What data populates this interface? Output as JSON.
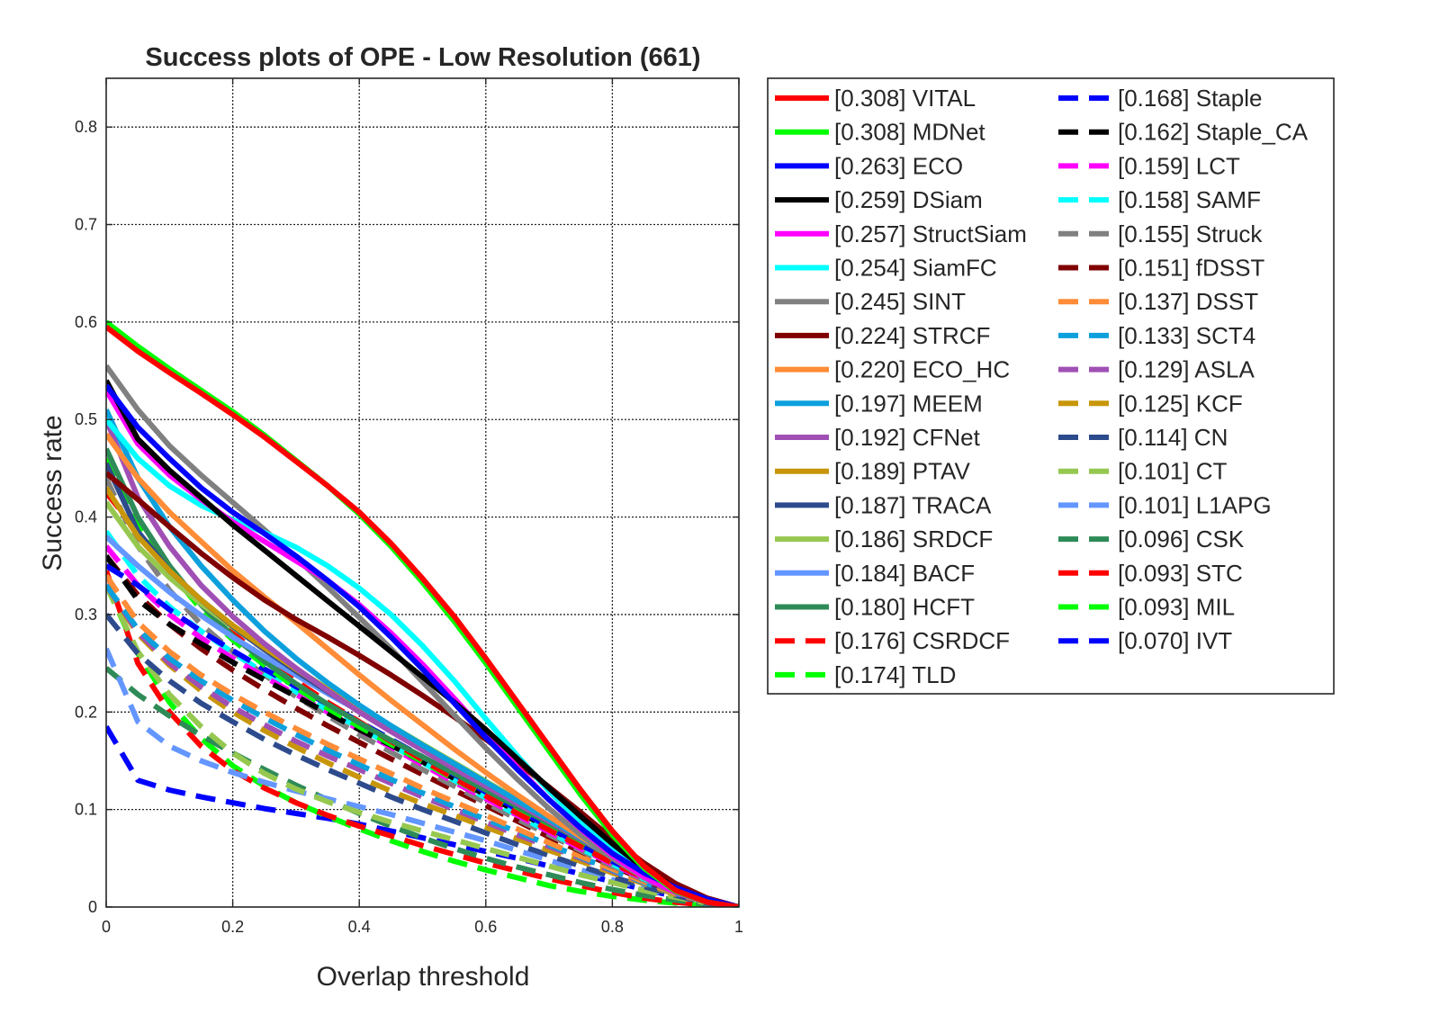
{
  "chart_data": {
    "type": "line",
    "title": "Success plots of OPE - Low Resolution (661)",
    "xlabel": "Overlap threshold",
    "ylabel": "Success rate",
    "xlim": [
      0,
      1
    ],
    "ylim": [
      0,
      0.85
    ],
    "xticks": [
      0,
      0.2,
      0.4,
      0.6,
      0.8,
      1
    ],
    "xtick_labels": [
      "0",
      "0.2",
      "0.4",
      "0.6",
      "0.8",
      "1"
    ],
    "yticks": [
      0,
      0.1,
      0.2,
      0.3,
      0.4,
      0.5,
      0.6,
      0.7,
      0.8
    ],
    "ytick_labels": [
      "0",
      "0.1",
      "0.2",
      "0.3",
      "0.4",
      "0.5",
      "0.6",
      "0.7",
      "0.8"
    ],
    "grid": true,
    "legend_position": "outside-right",
    "x": [
      0,
      0.05,
      0.1,
      0.15,
      0.2,
      0.25,
      0.3,
      0.35,
      0.4,
      0.45,
      0.5,
      0.55,
      0.6,
      0.65,
      0.7,
      0.75,
      0.8,
      0.85,
      0.9,
      0.95,
      1
    ],
    "series": [
      {
        "name": "[0.308] VITAL",
        "color": "#ff0000",
        "style": "solid",
        "values": [
          0.595,
          0.57,
          0.548,
          0.527,
          0.505,
          0.482,
          0.457,
          0.432,
          0.405,
          0.373,
          0.337,
          0.298,
          0.255,
          0.21,
          0.165,
          0.12,
          0.078,
          0.042,
          0.017,
          0.005,
          0.0
        ]
      },
      {
        "name": "[0.308] MDNet",
        "color": "#00ff00",
        "style": "solid",
        "values": [
          0.6,
          0.575,
          0.552,
          0.53,
          0.508,
          0.484,
          0.458,
          0.432,
          0.403,
          0.37,
          0.333,
          0.293,
          0.25,
          0.205,
          0.16,
          0.115,
          0.074,
          0.04,
          0.016,
          0.005,
          0.0
        ]
      },
      {
        "name": "[0.263] ECO",
        "color": "#0000ff",
        "style": "solid",
        "values": [
          0.535,
          0.492,
          0.46,
          0.43,
          0.405,
          0.383,
          0.36,
          0.335,
          0.308,
          0.277,
          0.244,
          0.209,
          0.174,
          0.141,
          0.11,
          0.081,
          0.055,
          0.035,
          0.02,
          0.008,
          0.0
        ]
      },
      {
        "name": "[0.259] DSiam",
        "color": "#000000",
        "style": "solid",
        "values": [
          0.54,
          0.48,
          0.448,
          0.42,
          0.392,
          0.366,
          0.34,
          0.314,
          0.288,
          0.262,
          0.236,
          0.21,
          0.182,
          0.152,
          0.122,
          0.093,
          0.065,
          0.04,
          0.019,
          0.006,
          0.0
        ]
      },
      {
        "name": "[0.257] StructSiam",
        "color": "#ff00ff",
        "style": "solid",
        "values": [
          0.53,
          0.475,
          0.443,
          0.418,
          0.395,
          0.375,
          0.355,
          0.335,
          0.31,
          0.281,
          0.249,
          0.214,
          0.178,
          0.143,
          0.11,
          0.08,
          0.053,
          0.031,
          0.015,
          0.005,
          0.0
        ]
      },
      {
        "name": "[0.254] SiamFC",
        "color": "#00ffff",
        "style": "solid",
        "values": [
          0.5,
          0.46,
          0.432,
          0.412,
          0.397,
          0.384,
          0.369,
          0.35,
          0.327,
          0.3,
          0.268,
          0.232,
          0.193,
          0.155,
          0.119,
          0.087,
          0.059,
          0.035,
          0.017,
          0.006,
          0.0
        ]
      },
      {
        "name": "[0.245] SINT",
        "color": "#808080",
        "style": "solid",
        "values": [
          0.555,
          0.51,
          0.473,
          0.443,
          0.415,
          0.387,
          0.358,
          0.328,
          0.297,
          0.265,
          0.231,
          0.197,
          0.163,
          0.131,
          0.101,
          0.074,
          0.05,
          0.03,
          0.015,
          0.005,
          0.0
        ]
      },
      {
        "name": "[0.224] STRCF",
        "color": "#800000",
        "style": "solid",
        "values": [
          0.445,
          0.418,
          0.39,
          0.363,
          0.338,
          0.315,
          0.295,
          0.277,
          0.258,
          0.238,
          0.217,
          0.195,
          0.172,
          0.148,
          0.123,
          0.097,
          0.07,
          0.045,
          0.024,
          0.009,
          0.0
        ]
      },
      {
        "name": "[0.220] ECO_HC",
        "color": "#ff8c37",
        "style": "solid",
        "values": [
          0.485,
          0.44,
          0.405,
          0.375,
          0.345,
          0.318,
          0.292,
          0.265,
          0.238,
          0.212,
          0.187,
          0.162,
          0.138,
          0.115,
          0.093,
          0.072,
          0.052,
          0.034,
          0.018,
          0.006,
          0.0
        ]
      },
      {
        "name": "[0.197] MEEM",
        "color": "#0ca0dc",
        "style": "solid",
        "values": [
          0.51,
          0.44,
          0.39,
          0.35,
          0.315,
          0.283,
          0.255,
          0.23,
          0.207,
          0.186,
          0.166,
          0.147,
          0.128,
          0.109,
          0.09,
          0.071,
          0.052,
          0.034,
          0.018,
          0.006,
          0.0
        ]
      },
      {
        "name": "[0.192] CFNet",
        "color": "#a050b4",
        "style": "solid",
        "values": [
          0.5,
          0.42,
          0.37,
          0.33,
          0.298,
          0.27,
          0.245,
          0.222,
          0.2,
          0.18,
          0.161,
          0.142,
          0.124,
          0.106,
          0.088,
          0.07,
          0.052,
          0.035,
          0.019,
          0.007,
          0.0
        ]
      },
      {
        "name": "[0.189] PTAV",
        "color": "#c8960a",
        "style": "solid",
        "values": [
          0.43,
          0.38,
          0.345,
          0.315,
          0.289,
          0.266,
          0.244,
          0.223,
          0.203,
          0.184,
          0.165,
          0.146,
          0.127,
          0.108,
          0.089,
          0.07,
          0.051,
          0.034,
          0.018,
          0.006,
          0.0
        ]
      },
      {
        "name": "[0.187] TRACA",
        "color": "#2d4b8c",
        "style": "solid",
        "values": [
          0.455,
          0.385,
          0.345,
          0.315,
          0.288,
          0.264,
          0.242,
          0.221,
          0.201,
          0.182,
          0.163,
          0.145,
          0.127,
          0.109,
          0.09,
          0.071,
          0.052,
          0.034,
          0.018,
          0.006,
          0.0
        ]
      },
      {
        "name": "[0.186] SRDCF",
        "color": "#96c850",
        "style": "solid",
        "values": [
          0.415,
          0.37,
          0.338,
          0.311,
          0.287,
          0.265,
          0.244,
          0.224,
          0.205,
          0.186,
          0.167,
          0.148,
          0.129,
          0.11,
          0.091,
          0.072,
          0.053,
          0.035,
          0.019,
          0.007,
          0.0
        ]
      },
      {
        "name": "[0.184] BACF",
        "color": "#6496ff",
        "style": "solid",
        "values": [
          0.38,
          0.35,
          0.323,
          0.299,
          0.277,
          0.257,
          0.238,
          0.219,
          0.201,
          0.183,
          0.165,
          0.147,
          0.128,
          0.109,
          0.09,
          0.071,
          0.052,
          0.034,
          0.018,
          0.006,
          0.0
        ]
      },
      {
        "name": "[0.180] HCFT",
        "color": "#2e8b57",
        "style": "solid",
        "values": [
          0.47,
          0.4,
          0.35,
          0.31,
          0.278,
          0.252,
          0.229,
          0.208,
          0.189,
          0.171,
          0.154,
          0.137,
          0.12,
          0.103,
          0.086,
          0.069,
          0.051,
          0.034,
          0.018,
          0.006,
          0.0
        ]
      },
      {
        "name": "[0.176] CSRDCF",
        "color": "#ff0000",
        "style": "dashed",
        "values": [
          0.425,
          0.385,
          0.345,
          0.31,
          0.281,
          0.255,
          0.232,
          0.21,
          0.19,
          0.17,
          0.151,
          0.132,
          0.114,
          0.096,
          0.079,
          0.062,
          0.045,
          0.03,
          0.016,
          0.006,
          0.0
        ]
      },
      {
        "name": "[0.174] TLD",
        "color": "#00ff00",
        "style": "dashed",
        "values": [
          0.46,
          0.395,
          0.345,
          0.305,
          0.274,
          0.248,
          0.225,
          0.204,
          0.185,
          0.167,
          0.149,
          0.131,
          0.114,
          0.097,
          0.08,
          0.063,
          0.046,
          0.031,
          0.017,
          0.006,
          0.0
        ]
      },
      {
        "name": "[0.168] Staple",
        "color": "#0000ff",
        "style": "dashed",
        "values": [
          0.35,
          0.33,
          0.305,
          0.283,
          0.263,
          0.244,
          0.226,
          0.208,
          0.19,
          0.172,
          0.154,
          0.136,
          0.118,
          0.1,
          0.082,
          0.064,
          0.047,
          0.031,
          0.017,
          0.006,
          0.0
        ]
      },
      {
        "name": "[0.162] Staple_CA",
        "color": "#000000",
        "style": "dashed",
        "values": [
          0.36,
          0.315,
          0.29,
          0.27,
          0.251,
          0.233,
          0.216,
          0.199,
          0.182,
          0.166,
          0.149,
          0.132,
          0.115,
          0.098,
          0.081,
          0.064,
          0.047,
          0.031,
          0.017,
          0.006,
          0.0
        ]
      },
      {
        "name": "[0.159] LCT",
        "color": "#ff00ff",
        "style": "dashed",
        "values": [
          0.37,
          0.33,
          0.3,
          0.276,
          0.255,
          0.236,
          0.218,
          0.2,
          0.182,
          0.164,
          0.146,
          0.128,
          0.111,
          0.094,
          0.077,
          0.06,
          0.044,
          0.029,
          0.016,
          0.006,
          0.0
        ]
      },
      {
        "name": "[0.158] SAMF",
        "color": "#00ffff",
        "style": "dashed",
        "values": [
          0.385,
          0.34,
          0.308,
          0.283,
          0.261,
          0.24,
          0.221,
          0.202,
          0.184,
          0.166,
          0.148,
          0.13,
          0.112,
          0.094,
          0.077,
          0.06,
          0.044,
          0.029,
          0.016,
          0.006,
          0.0
        ]
      },
      {
        "name": "[0.155] Struck",
        "color": "#808080",
        "style": "dashed",
        "values": [
          0.44,
          0.37,
          0.325,
          0.29,
          0.262,
          0.238,
          0.216,
          0.196,
          0.177,
          0.159,
          0.141,
          0.124,
          0.107,
          0.09,
          0.074,
          0.058,
          0.042,
          0.028,
          0.015,
          0.005,
          0.0
        ]
      },
      {
        "name": "[0.151] fDSST",
        "color": "#800000",
        "style": "dashed",
        "values": [
          0.36,
          0.32,
          0.29,
          0.265,
          0.243,
          0.223,
          0.204,
          0.186,
          0.169,
          0.152,
          0.136,
          0.12,
          0.104,
          0.088,
          0.072,
          0.057,
          0.042,
          0.028,
          0.015,
          0.005,
          0.0
        ]
      },
      {
        "name": "[0.137] DSST",
        "color": "#ff8c37",
        "style": "dashed",
        "values": [
          0.34,
          0.292,
          0.262,
          0.238,
          0.218,
          0.2,
          0.183,
          0.167,
          0.152,
          0.137,
          0.122,
          0.108,
          0.094,
          0.08,
          0.066,
          0.052,
          0.039,
          0.026,
          0.014,
          0.005,
          0.0
        ]
      },
      {
        "name": "[0.133] SCT4",
        "color": "#0ca0dc",
        "style": "dashed",
        "values": [
          0.33,
          0.285,
          0.255,
          0.232,
          0.212,
          0.194,
          0.177,
          0.161,
          0.146,
          0.131,
          0.117,
          0.103,
          0.09,
          0.077,
          0.064,
          0.051,
          0.038,
          0.025,
          0.014,
          0.005,
          0.0
        ]
      },
      {
        "name": "[0.129] ASLA",
        "color": "#a050b4",
        "style": "dashed",
        "values": [
          0.33,
          0.282,
          0.25,
          0.226,
          0.205,
          0.187,
          0.17,
          0.155,
          0.141,
          0.127,
          0.113,
          0.1,
          0.087,
          0.074,
          0.062,
          0.05,
          0.037,
          0.025,
          0.014,
          0.005,
          0.0
        ]
      },
      {
        "name": "[0.125] KCF",
        "color": "#c8960a",
        "style": "dashed",
        "values": [
          0.33,
          0.28,
          0.248,
          0.222,
          0.2,
          0.181,
          0.164,
          0.148,
          0.133,
          0.119,
          0.106,
          0.094,
          0.082,
          0.07,
          0.058,
          0.047,
          0.035,
          0.024,
          0.013,
          0.005,
          0.0
        ]
      },
      {
        "name": "[0.114] CN",
        "color": "#2d4b8c",
        "style": "dashed",
        "values": [
          0.3,
          0.26,
          0.232,
          0.209,
          0.19,
          0.172,
          0.156,
          0.141,
          0.127,
          0.113,
          0.1,
          0.088,
          0.076,
          0.064,
          0.053,
          0.042,
          0.031,
          0.021,
          0.012,
          0.004,
          0.0
        ]
      },
      {
        "name": "[0.101] CT",
        "color": "#96c850",
        "style": "dashed",
        "values": [
          0.33,
          0.262,
          0.218,
          0.185,
          0.158,
          0.137,
          0.121,
          0.108,
          0.097,
          0.087,
          0.078,
          0.069,
          0.06,
          0.051,
          0.042,
          0.033,
          0.025,
          0.017,
          0.01,
          0.004,
          0.0
        ]
      },
      {
        "name": "[0.101] L1APG",
        "color": "#6496ff",
        "style": "dashed",
        "values": [
          0.265,
          0.19,
          0.165,
          0.15,
          0.138,
          0.128,
          0.119,
          0.111,
          0.103,
          0.095,
          0.086,
          0.077,
          0.068,
          0.058,
          0.048,
          0.038,
          0.028,
          0.019,
          0.011,
          0.004,
          0.0
        ]
      },
      {
        "name": "[0.096] CSK",
        "color": "#2e8b57",
        "style": "dashed",
        "values": [
          0.245,
          0.218,
          0.196,
          0.176,
          0.158,
          0.141,
          0.125,
          0.11,
          0.096,
          0.083,
          0.071,
          0.06,
          0.05,
          0.041,
          0.033,
          0.025,
          0.018,
          0.012,
          0.007,
          0.003,
          0.0
        ]
      },
      {
        "name": "[0.093] STC",
        "color": "#ff0000",
        "style": "dashed",
        "values": [
          0.345,
          0.25,
          0.2,
          0.165,
          0.14,
          0.122,
          0.107,
          0.094,
          0.083,
          0.073,
          0.063,
          0.054,
          0.045,
          0.037,
          0.029,
          0.022,
          0.015,
          0.009,
          0.005,
          0.002,
          0.0
        ]
      },
      {
        "name": "[0.093] MIL",
        "color": "#00ff00",
        "style": "dashed",
        "values": [
          0.33,
          0.26,
          0.21,
          0.173,
          0.145,
          0.124,
          0.107,
          0.093,
          0.08,
          0.068,
          0.057,
          0.047,
          0.038,
          0.03,
          0.022,
          0.016,
          0.011,
          0.007,
          0.004,
          0.001,
          0.0
        ]
      },
      {
        "name": "[0.070] IVT",
        "color": "#0000ff",
        "style": "dashed",
        "values": [
          0.185,
          0.13,
          0.12,
          0.113,
          0.107,
          0.101,
          0.096,
          0.091,
          0.085,
          0.078,
          0.071,
          0.064,
          0.057,
          0.05,
          0.042,
          0.034,
          0.026,
          0.018,
          0.011,
          0.004,
          0.0
        ]
      }
    ]
  }
}
